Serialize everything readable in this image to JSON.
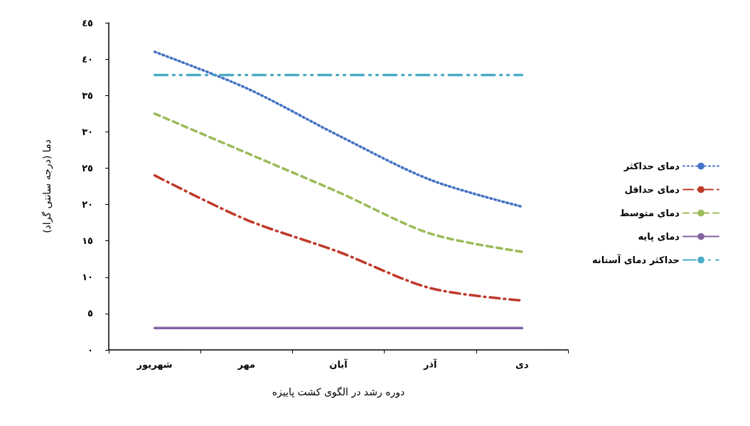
{
  "chart_data": {
    "type": "line",
    "xlabel": "دوره رشد در الگوی کشت پاییزه",
    "ylabel": "دما (درجه سانتی گراد)",
    "categories": [
      "شهریور",
      "مهر",
      "آبان",
      "آذر",
      "دی"
    ],
    "ylim": [
      0,
      45
    ],
    "yticks": [
      {
        "value": 0,
        "label": "٠"
      },
      {
        "value": 5,
        "label": "٥"
      },
      {
        "value": 10,
        "label": "١٠"
      },
      {
        "value": 15,
        "label": "١٥"
      },
      {
        "value": 20,
        "label": "٢٠"
      },
      {
        "value": 25,
        "label": "٢٥"
      },
      {
        "value": 30,
        "label": "٣٠"
      },
      {
        "value": 35,
        "label": "٣٥"
      },
      {
        "value": 40,
        "label": "٤٠"
      },
      {
        "value": 45,
        "label": "٤٥"
      }
    ],
    "grid": false,
    "legend": "right",
    "marker": "none",
    "series": [
      {
        "name": "دمای حداکثر",
        "color": "#4472c4",
        "line_style": "dotted",
        "values": [
          41.0,
          36.0,
          29.5,
          23.4,
          19.7
        ]
      },
      {
        "name": "دمای حداقل",
        "color": "#c0392b",
        "line_style": "dashdot",
        "values": [
          24.0,
          17.9,
          13.5,
          8.5,
          6.8
        ]
      },
      {
        "name": "دمای متوسط",
        "color": "#9bbb59",
        "line_style": "dashed",
        "values": [
          32.5,
          27.1,
          21.7,
          16.0,
          13.5
        ]
      },
      {
        "name": "دمای پایه",
        "color": "#8064a2",
        "line_style": "solid",
        "values": [
          3,
          3,
          3,
          3,
          3
        ]
      },
      {
        "name": "حداکثر دمای آستانه",
        "color": "#4bacc6",
        "line_style": "dashdotdot",
        "values": [
          37.8,
          37.8,
          37.8,
          37.8,
          37.8
        ]
      }
    ]
  }
}
